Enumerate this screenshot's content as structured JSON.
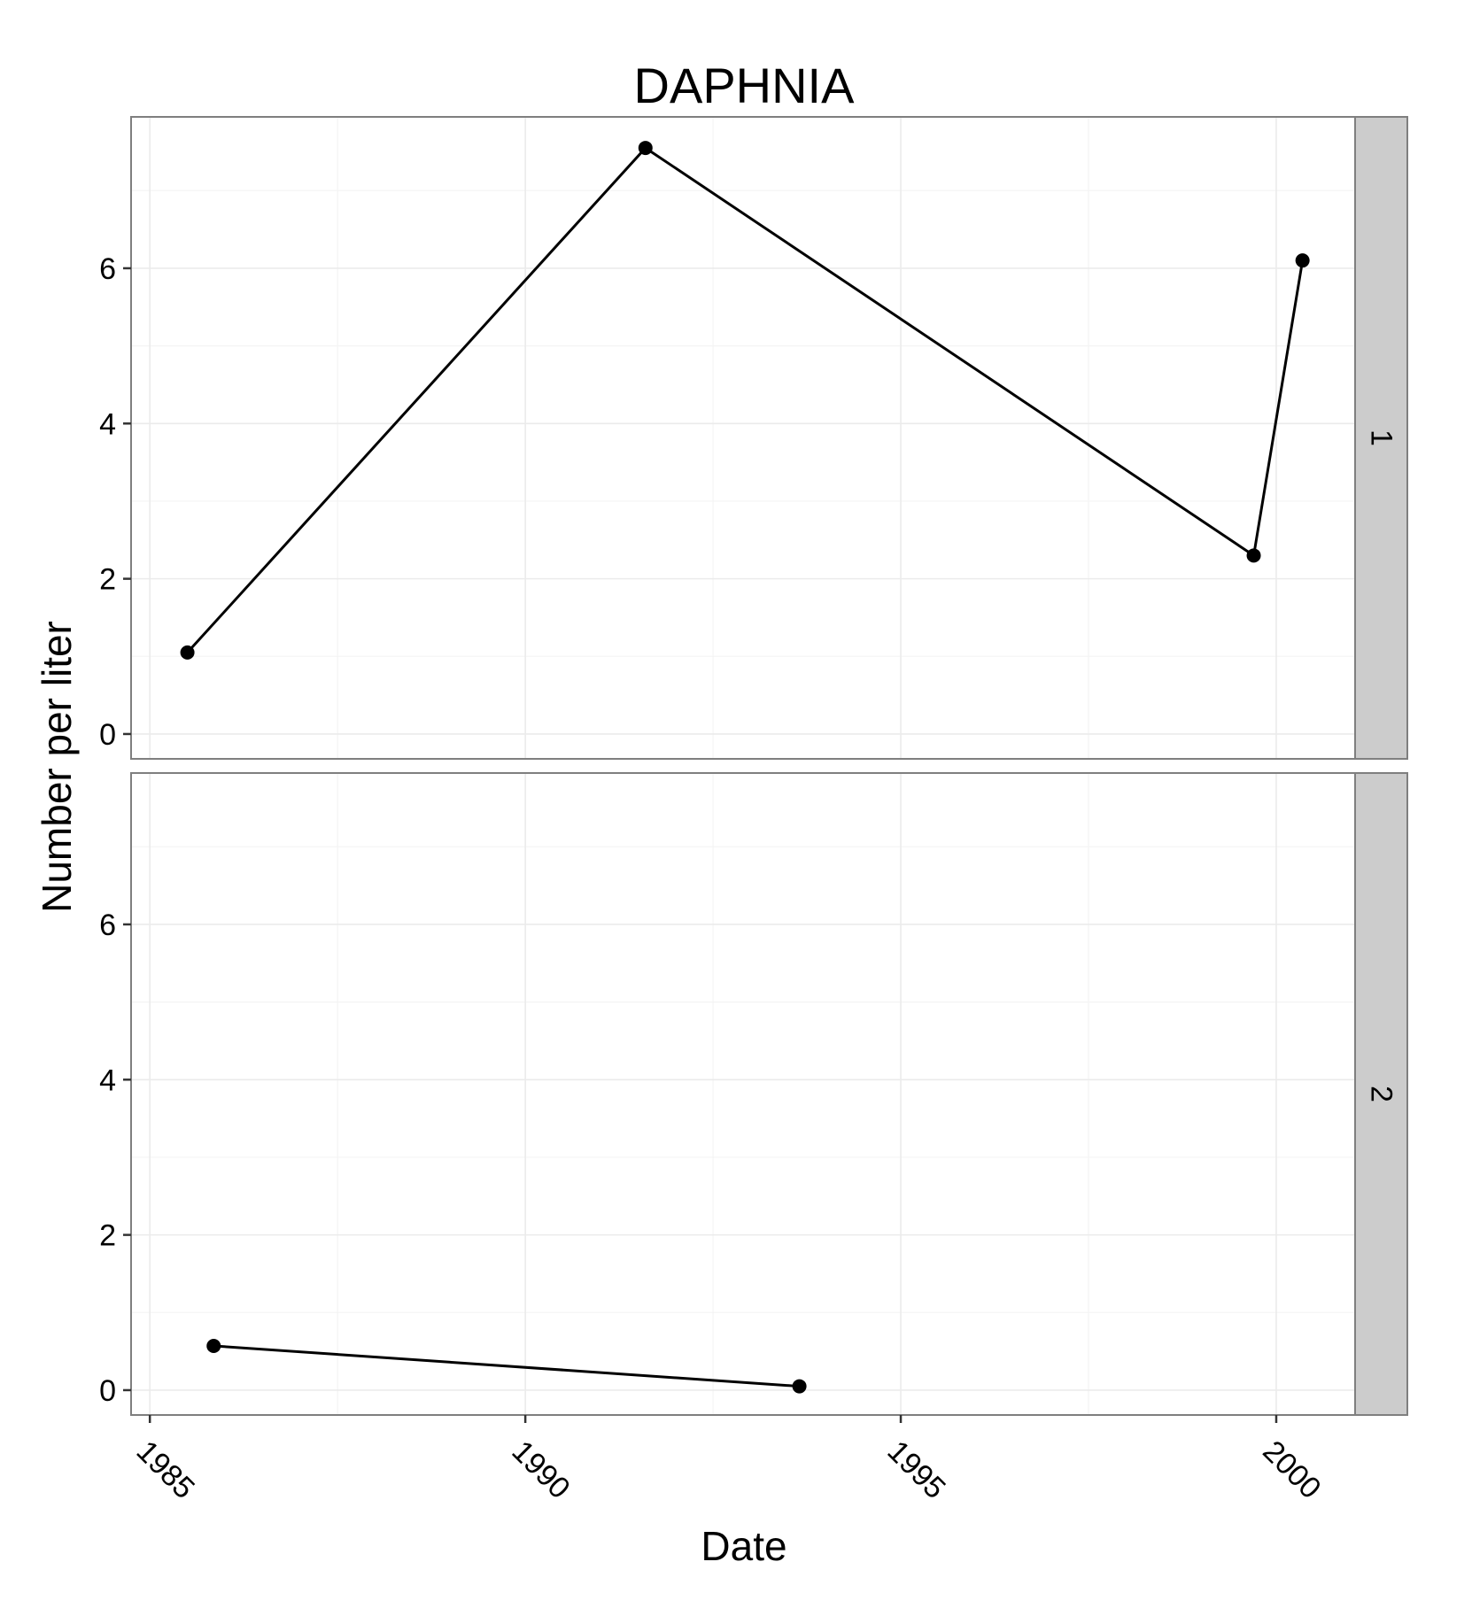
{
  "chart_data": {
    "type": "line",
    "title": "DAPHNIA",
    "xlabel": "Date",
    "ylabel": "Number per liter",
    "xlim": [
      1984.75,
      2001.05
    ],
    "ylim": [
      -0.32,
      7.95
    ],
    "x_ticks": [
      1985,
      1990,
      1995,
      2000
    ],
    "x_tick_labels": [
      "1985",
      "1990",
      "1995",
      "2000"
    ],
    "y_ticks": [
      0,
      2,
      4,
      6
    ],
    "y_tick_labels": [
      "0",
      "2",
      "4",
      "6"
    ],
    "grid": true,
    "legend": "none",
    "facets": [
      {
        "label": "1",
        "series": [
          {
            "x": [
              1985.5,
              1991.6,
              1999.7,
              2000.35
            ],
            "values": [
              1.05,
              7.55,
              2.3,
              6.1
            ]
          }
        ]
      },
      {
        "label": "2",
        "series": [
          {
            "x": [
              1985.85,
              1993.65
            ],
            "values": [
              0.57,
              0.05
            ]
          }
        ]
      }
    ]
  }
}
